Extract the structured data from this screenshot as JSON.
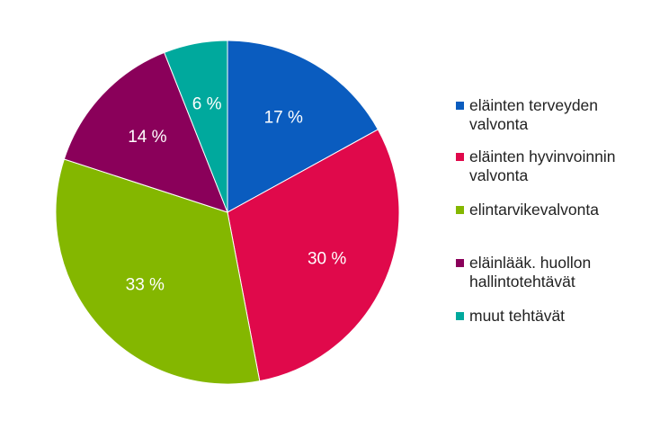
{
  "chart_data": {
    "type": "pie",
    "categories": [
      "eläinten terveyden valvonta",
      "eläinten hyvinvoinnin valvonta",
      "elintarvikevalvonta",
      "eläinlääk. huollon hallintotehtävät",
      "muut tehtävät"
    ],
    "values": [
      17,
      30,
      33,
      14,
      6
    ],
    "value_labels": [
      "17 %",
      "30 %",
      "33 %",
      "14 %",
      "6 %"
    ],
    "colors": [
      "#0a5cbf",
      "#e0094b",
      "#84b700",
      "#8a005a",
      "#00a99d"
    ],
    "legend_position": "right",
    "legend": [
      {
        "lines": [
          "eläinten terveyden",
          "valvonta"
        ]
      },
      {
        "lines": [
          "eläinten hyvinvoinnin",
          "valvonta"
        ]
      },
      {
        "lines": [
          "elintarvikevalvonta"
        ]
      },
      {
        "lines": [
          "eläinlääk. huollon",
          "hallintotehtävät"
        ]
      },
      {
        "lines": [
          "muut tehtävät"
        ]
      }
    ]
  }
}
